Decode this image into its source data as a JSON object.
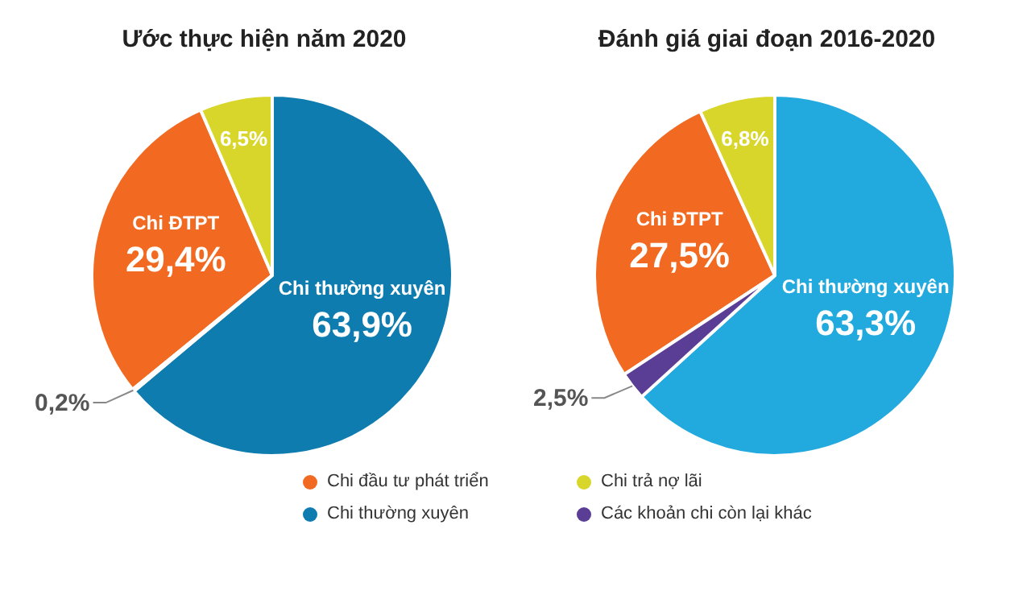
{
  "chart_data": [
    {
      "type": "pie",
      "title": "Ước thực hiện năm 2020",
      "categories": [
        "Chi đầu tư phát triển",
        "Chi trả nợ lãi",
        "Chi thường xuyên",
        "Các khoản chi còn lại khác"
      ],
      "values": [
        29.4,
        6.5,
        63.9,
        0.2
      ],
      "colors": [
        "#f26a21",
        "#d9d62b",
        "#0f7cb0",
        "#5a3d94"
      ],
      "value_labels": [
        "29,4%",
        "6,5%",
        "63,9%",
        "0,2%"
      ],
      "annotations": [
        "Chi ĐTPT",
        "Chi thường xuyên"
      ],
      "legend": "bottom"
    },
    {
      "type": "pie",
      "title": "Đánh giá giai đoạn 2016-2020",
      "categories": [
        null,
        null,
        null,
        null
      ],
      "values": [
        27.5,
        6.8,
        63.3,
        2.5
      ],
      "colors": [
        "#f26a21",
        "#d9d62b",
        "#22a9de",
        "#5a3d94"
      ],
      "value_labels": [
        "27,5%",
        "6,8%",
        "63,3%",
        "2,5%"
      ],
      "annotations": [
        "Chi ĐTPT",
        "Chi thường xuyên"
      ]
    }
  ]
}
